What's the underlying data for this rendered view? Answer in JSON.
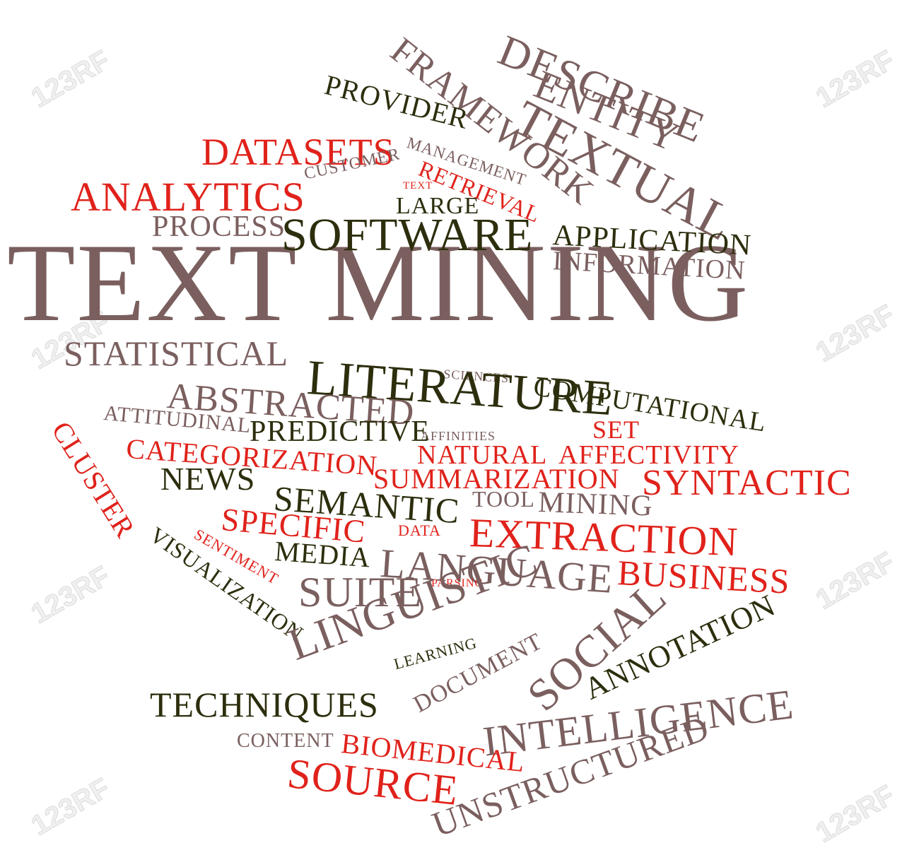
{
  "colors": {
    "brown": "#7b5f5f",
    "olive": "#2d2e0d",
    "red": "#e0221b",
    "background": "#ffffff"
  },
  "watermark": "123RF",
  "words": [
    "TEXT MINING",
    "DESCRIBE",
    "ENTITY",
    "TEXTUAL",
    "FRAMEWORK",
    "PROVIDER",
    "MANAGEMENT",
    "DATASETS",
    "CUSTOMER",
    "RETRIEVAL",
    "TEXT",
    "ANALYTICS",
    "LARGE",
    "PROCESS",
    "SOFTWARE",
    "APPLICATION",
    "INFORMATION",
    "STATISTICAL",
    "SCIENCES",
    "LITERATURE",
    "COMPUTATIONAL",
    "ABSTRACTED",
    "ATTITUDINAL",
    "AFFINITIES",
    "SET",
    "CLUSTER",
    "PREDICTIVE",
    "CATEGORIZATION",
    "NATURAL",
    "AFFECTIVITY",
    "NEWS",
    "SEMANTIC",
    "SUMMARIZATION",
    "SYNTACTIC",
    "TOOL",
    "MINING",
    "SPECIFIC",
    "DATA",
    "EXTRACTION",
    "VISUALIZATION",
    "SENTIMENT",
    "MEDIA",
    "LANGUAGE",
    "BUSINESS",
    "PARSING",
    "SUITE",
    "LINGUISTIC",
    "LEARNING",
    "DOCUMENT",
    "SOCIAL",
    "ANNOTATION",
    "TECHNIQUES",
    "INTELLIGENCE",
    "CONTENT",
    "BIOMEDICAL",
    "SOURCE",
    "UNSTRUCTURED"
  ]
}
